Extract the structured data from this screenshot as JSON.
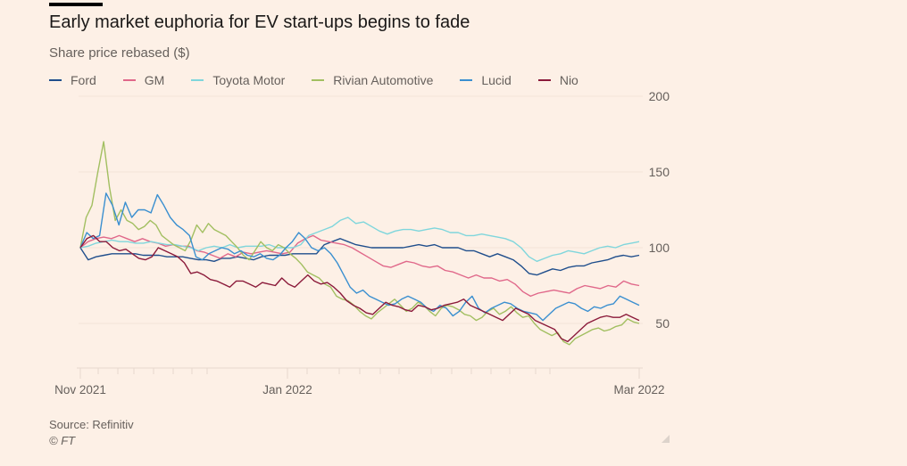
{
  "header": {
    "title": "Early market euphoria for EV start-ups begins to fade",
    "subtitle": "Share price rebased ($)"
  },
  "footer": {
    "source": "Source: Refinitiv",
    "copyright": "© FT"
  },
  "chart_data": {
    "type": "line",
    "title": "Early market euphoria for EV start-ups begins to fade",
    "subtitle": "Share price rebased ($)",
    "xlabel": "",
    "ylabel": "Share price rebased ($)",
    "ylim": [
      20,
      200
    ],
    "yticks": [
      50,
      100,
      150,
      200
    ],
    "ytick_labels": [
      "50",
      "100",
      "150",
      "200"
    ],
    "xticks": [
      "Nov 2021",
      "Jan 2022",
      "Mar 2022"
    ],
    "x_period": "Nov 2021 – Mar 2022",
    "grid": true,
    "legend_position": "top-left",
    "series": [
      {
        "name": "Ford",
        "color": "#1f4e8c",
        "values": [
          100,
          92,
          94,
          95,
          96,
          96,
          96,
          96,
          95,
          95,
          95,
          94,
          94,
          94,
          93,
          92,
          92,
          91,
          93,
          93,
          94,
          93,
          92,
          94,
          95,
          95,
          95,
          96,
          96,
          96,
          96,
          102,
          104,
          106,
          104,
          102,
          101,
          100,
          100,
          100,
          100,
          100,
          101,
          102,
          101,
          102,
          100,
          100,
          100,
          98,
          98,
          96,
          94,
          96,
          94,
          92,
          88,
          83,
          82,
          84,
          86,
          85,
          87,
          88,
          88,
          90,
          91,
          92,
          94,
          95,
          94,
          95
        ]
      },
      {
        "name": "GM",
        "color": "#e0688a",
        "values": [
          100,
          104,
          106,
          107,
          106,
          108,
          106,
          104,
          106,
          104,
          103,
          101,
          102,
          101,
          101,
          98,
          97,
          95,
          93,
          96,
          94,
          97,
          96,
          97,
          98,
          97,
          96,
          97,
          103,
          106,
          108,
          105,
          104,
          103,
          102,
          100,
          97,
          94,
          91,
          88,
          87,
          89,
          91,
          90,
          88,
          87,
          88,
          85,
          84,
          82,
          80,
          82,
          80,
          80,
          78,
          79,
          76,
          71,
          68,
          70,
          71,
          72,
          71,
          70,
          73,
          75,
          74,
          73,
          75,
          74,
          78,
          76,
          75
        ]
      },
      {
        "name": "Toyota Motor",
        "color": "#7fd6dc",
        "values": [
          100,
          101,
          103,
          104,
          105,
          104,
          104,
          103,
          103,
          104,
          103,
          102,
          102,
          101,
          100,
          98,
          100,
          101,
          100,
          102,
          100,
          101,
          101,
          101,
          102,
          100,
          100,
          100,
          102,
          108,
          110,
          112,
          114,
          118,
          120,
          116,
          117,
          114,
          111,
          109,
          111,
          112,
          112,
          111,
          112,
          113,
          112,
          110,
          110,
          108,
          108,
          109,
          108,
          107,
          106,
          104,
          100,
          94,
          91,
          93,
          95,
          96,
          98,
          97,
          96,
          98,
          100,
          101,
          100,
          102,
          103,
          104
        ]
      },
      {
        "name": "Rivian Automotive",
        "color": "#a2bf61",
        "values": [
          100,
          120,
          128,
          150,
          170,
          140,
          118,
          125,
          118,
          116,
          112,
          114,
          118,
          115,
          108,
          105,
          102,
          100,
          98,
          105,
          115,
          110,
          116,
          112,
          110,
          108,
          104,
          100,
          95,
          92,
          98,
          104,
          100,
          98,
          102,
          100,
          96,
          93,
          89,
          84,
          82,
          80,
          76,
          74,
          68,
          66,
          65,
          62,
          58,
          55,
          53,
          57,
          60,
          63,
          66,
          62,
          58,
          60,
          64,
          62,
          58,
          55,
          60,
          62,
          61,
          59,
          56,
          55,
          52,
          54,
          58,
          60,
          56,
          58,
          61,
          57,
          54,
          55,
          50,
          46,
          44,
          42,
          44,
          38,
          36,
          40,
          42,
          44,
          46,
          47,
          45,
          46,
          48,
          49,
          53,
          51,
          50
        ]
      },
      {
        "name": "Lucid",
        "color": "#3a8fd0",
        "values": [
          100,
          110,
          106,
          108,
          136,
          128,
          115,
          130,
          120,
          125,
          125,
          123,
          135,
          128,
          120,
          115,
          112,
          108,
          94,
          92,
          96,
          98,
          100,
          99,
          96,
          98,
          95,
          94,
          96,
          93,
          92,
          95,
          100,
          104,
          110,
          106,
          100,
          98,
          100,
          96,
          90,
          82,
          74,
          70,
          72,
          68,
          66,
          64,
          62,
          63,
          66,
          68,
          66,
          64,
          60,
          58,
          62,
          60,
          55,
          58,
          64,
          68,
          60,
          57,
          60,
          62,
          64,
          63,
          60,
          58,
          57,
          56,
          52,
          56,
          60,
          62,
          64,
          63,
          60,
          58,
          61,
          60,
          62,
          63,
          68,
          66,
          64,
          62
        ]
      },
      {
        "name": "Nio",
        "color": "#8b1a3a",
        "values": [
          100,
          106,
          108,
          104,
          104,
          100,
          98,
          99,
          96,
          93,
          92,
          94,
          100,
          98,
          96,
          94,
          90,
          83,
          84,
          82,
          79,
          78,
          76,
          74,
          78,
          78,
          76,
          74,
          77,
          76,
          75,
          80,
          76,
          74,
          78,
          82,
          78,
          76,
          77,
          74,
          70,
          65,
          62,
          60,
          57,
          56,
          60,
          64,
          62,
          61,
          59,
          58,
          62,
          61,
          59,
          60,
          62,
          63,
          64,
          66,
          62,
          60,
          58,
          56,
          54,
          52,
          56,
          60,
          58,
          56,
          52,
          50,
          48,
          46,
          40,
          38,
          42,
          46,
          50,
          52,
          54,
          55,
          54,
          54,
          56,
          54,
          52
        ]
      }
    ]
  },
  "legend": {
    "items": [
      {
        "label": "Ford",
        "color": "#1f4e8c"
      },
      {
        "label": "GM",
        "color": "#e0688a"
      },
      {
        "label": "Toyota Motor",
        "color": "#7fd6dc"
      },
      {
        "label": "Rivian Automotive",
        "color": "#a2bf61"
      },
      {
        "label": "Lucid",
        "color": "#3a8fd0"
      },
      {
        "label": "Nio",
        "color": "#8b1a3a"
      }
    ]
  }
}
